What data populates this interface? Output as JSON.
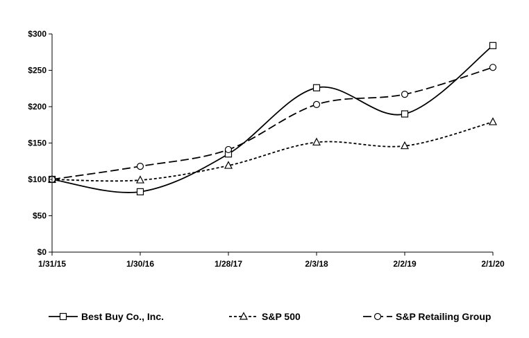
{
  "chart_data": {
    "type": "line",
    "title": "",
    "xlabel": "",
    "ylabel": "",
    "categories": [
      "1/31/15",
      "1/30/16",
      "1/28/17",
      "2/3/18",
      "2/2/19",
      "2/1/20"
    ],
    "ylim": [
      0,
      300
    ],
    "yticks": [
      0,
      50,
      100,
      150,
      200,
      250,
      300
    ],
    "ytick_labels": [
      "$0",
      "$50",
      "$100",
      "$150",
      "$200",
      "$250",
      "$300"
    ],
    "grid": false,
    "legend_position": "bottom",
    "series": [
      {
        "name": "Best Buy Co., Inc.",
        "marker": "square",
        "dash": "solid",
        "values": [
          100,
          83,
          135,
          226,
          190,
          284
        ]
      },
      {
        "name": "S&P 500",
        "marker": "triangle",
        "dash": "short-dash",
        "values": [
          100,
          99,
          119,
          151,
          146,
          179
        ]
      },
      {
        "name": "S&P Retailing Group",
        "marker": "circle",
        "dash": "long-dash",
        "values": [
          100,
          118,
          141,
          203,
          217,
          254
        ]
      }
    ]
  }
}
